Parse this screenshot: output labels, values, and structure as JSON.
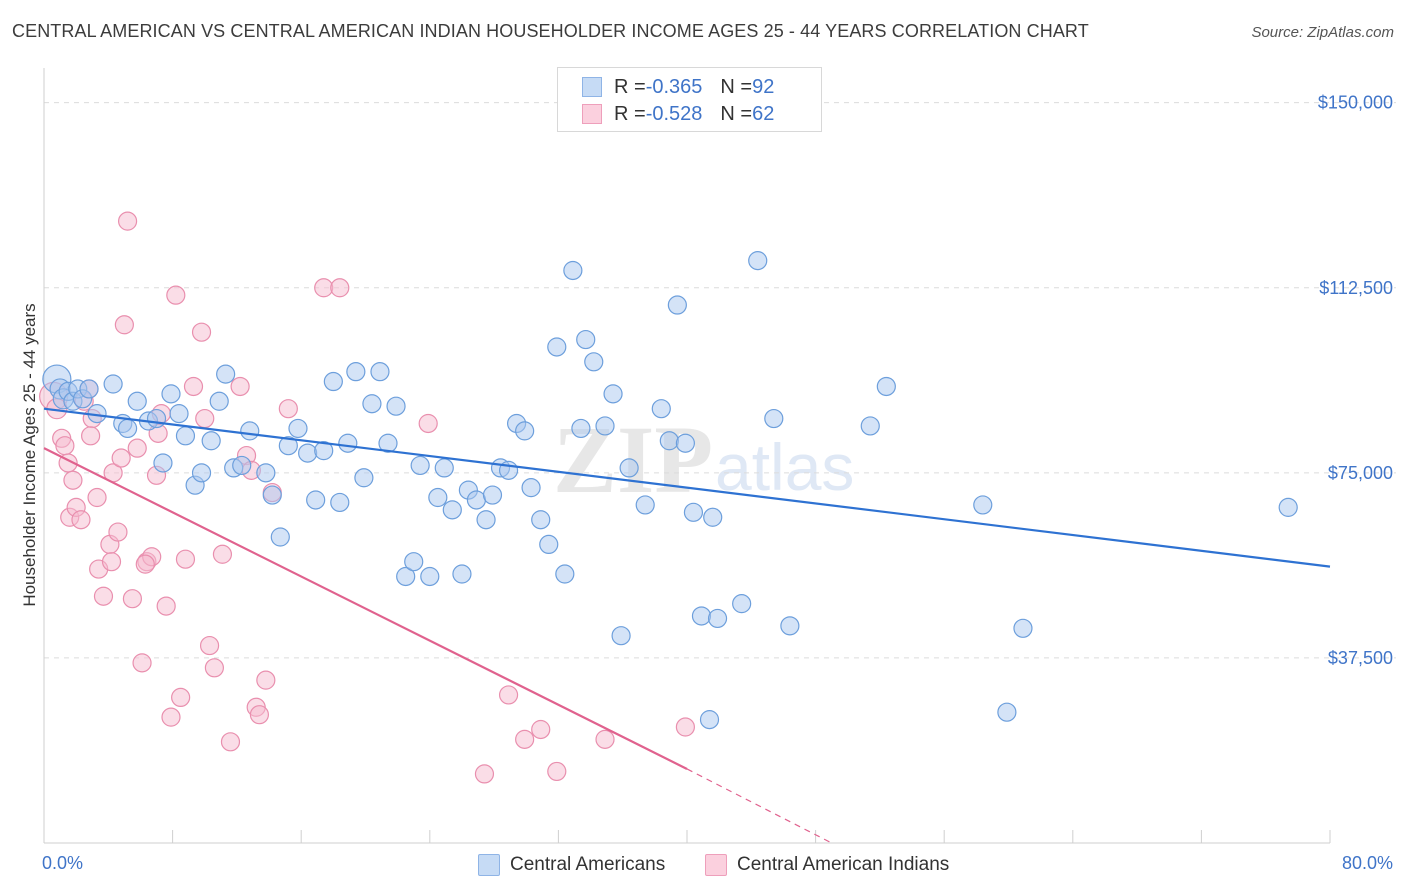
{
  "header": {
    "title": "CENTRAL AMERICAN VS CENTRAL AMERICAN INDIAN HOUSEHOLDER INCOME AGES 25 - 44 YEARS CORRELATION CHART",
    "source": "Source: ZipAtlas.com"
  },
  "legend": {
    "rows": [
      {
        "r_label": "R = ",
        "r_value": "-0.365",
        "n_label": "N = ",
        "n_value": "92"
      },
      {
        "r_label": "R = ",
        "r_value": "-0.528",
        "n_label": "N = ",
        "n_value": "62"
      }
    ]
  },
  "bottom_legend": [
    "Central Americans",
    "Central American Indians"
  ],
  "watermark": {
    "zip": "ZIP",
    "atlas": "atlas"
  },
  "colors": {
    "blue_fill": "#a9c8ef",
    "blue_stroke": "#6d9fdc",
    "blue_line": "#2e72d2",
    "pink_fill": "#f6bcd0",
    "pink_stroke": "#e98fae",
    "pink_line": "#e0628e",
    "grid": "#dcdcdc",
    "tick_text": "#3f74c8"
  },
  "chart_data": {
    "type": "scatter",
    "title": "CENTRAL AMERICAN VS CENTRAL AMERICAN INDIAN HOUSEHOLDER INCOME AGES 25 - 44 YEARS CORRELATION CHART",
    "xlabel": "",
    "ylabel": "Householder Income Ages 25 - 44 years",
    "xlim": [
      0,
      80
    ],
    "ylim": [
      0,
      155000
    ],
    "x_tick_labels": [
      "0.0%",
      "80.0%"
    ],
    "y_ticks": [
      37500,
      75000,
      112500,
      150000
    ],
    "y_tick_labels": [
      "$37,500",
      "$75,000",
      "$112,500",
      "$150,000"
    ],
    "grid": "horizontal dashed",
    "legend_position": "top-center",
    "series": [
      {
        "name": "Central Americans",
        "color": "#a9c8ef",
        "r": -0.365,
        "n": 92,
        "trend": {
          "x": [
            0,
            80
          ],
          "y": [
            88000,
            56000
          ]
        },
        "points": [
          [
            0.8,
            94000,
            14
          ],
          [
            1.0,
            92000,
            10
          ],
          [
            1.2,
            90000,
            10
          ],
          [
            1.5,
            91500,
            9
          ],
          [
            1.8,
            89500,
            9
          ],
          [
            2.1,
            92000,
            9
          ],
          [
            2.4,
            90000,
            9
          ],
          [
            2.8,
            92000,
            9
          ],
          [
            3.3,
            87000,
            9
          ],
          [
            4.3,
            93000,
            9
          ],
          [
            4.9,
            85000,
            9
          ],
          [
            5.2,
            84000,
            9
          ],
          [
            5.8,
            89500,
            9
          ],
          [
            6.5,
            85500,
            9
          ],
          [
            7.0,
            86000,
            9
          ],
          [
            7.4,
            77000,
            9
          ],
          [
            7.9,
            91000,
            9
          ],
          [
            8.4,
            87000,
            9
          ],
          [
            8.8,
            82500,
            9
          ],
          [
            9.4,
            72500,
            9
          ],
          [
            9.8,
            75000,
            9
          ],
          [
            10.4,
            81500,
            9
          ],
          [
            10.9,
            89500,
            9
          ],
          [
            11.3,
            95000,
            9
          ],
          [
            11.8,
            76000,
            9
          ],
          [
            12.3,
            76500,
            9
          ],
          [
            12.8,
            83500,
            9
          ],
          [
            13.8,
            75000,
            9
          ],
          [
            14.2,
            70500,
            9
          ],
          [
            14.7,
            62000,
            9
          ],
          [
            15.2,
            80500,
            9
          ],
          [
            15.8,
            84000,
            9
          ],
          [
            16.4,
            79000,
            9
          ],
          [
            16.9,
            69500,
            9
          ],
          [
            17.4,
            79500,
            9
          ],
          [
            18.0,
            93500,
            9
          ],
          [
            18.4,
            69000,
            9
          ],
          [
            18.9,
            81000,
            9
          ],
          [
            19.4,
            95500,
            9
          ],
          [
            19.9,
            74000,
            9
          ],
          [
            20.4,
            89000,
            9
          ],
          [
            20.9,
            95500,
            9
          ],
          [
            21.4,
            81000,
            9
          ],
          [
            21.9,
            88500,
            9
          ],
          [
            22.5,
            54000,
            9
          ],
          [
            23.0,
            57000,
            9
          ],
          [
            23.4,
            76500,
            9
          ],
          [
            24.0,
            54000,
            9
          ],
          [
            24.5,
            70000,
            9
          ],
          [
            24.9,
            76000,
            9
          ],
          [
            25.4,
            67500,
            9
          ],
          [
            26.0,
            54500,
            9
          ],
          [
            26.4,
            71500,
            9
          ],
          [
            26.9,
            69500,
            9
          ],
          [
            27.5,
            65500,
            9
          ],
          [
            27.9,
            70500,
            9
          ],
          [
            28.4,
            76000,
            9
          ],
          [
            28.9,
            75500,
            9
          ],
          [
            29.4,
            85000,
            9
          ],
          [
            29.9,
            83500,
            9
          ],
          [
            30.3,
            72000,
            9
          ],
          [
            30.9,
            65500,
            9
          ],
          [
            31.4,
            60500,
            9
          ],
          [
            31.9,
            100500,
            9
          ],
          [
            32.4,
            54500,
            9
          ],
          [
            32.9,
            116000,
            9
          ],
          [
            33.4,
            84000,
            9
          ],
          [
            33.7,
            102000,
            9
          ],
          [
            34.2,
            97500,
            9
          ],
          [
            34.9,
            84500,
            9
          ],
          [
            35.4,
            91000,
            9
          ],
          [
            35.9,
            42000,
            9
          ],
          [
            36.4,
            76000,
            9
          ],
          [
            37.4,
            68500,
            9
          ],
          [
            38.4,
            88000,
            9
          ],
          [
            38.9,
            81500,
            9
          ],
          [
            39.4,
            109000,
            9
          ],
          [
            39.9,
            81000,
            9
          ],
          [
            40.4,
            67000,
            9
          ],
          [
            40.9,
            46000,
            9
          ],
          [
            41.4,
            25000,
            9
          ],
          [
            41.9,
            45500,
            9
          ],
          [
            41.6,
            66000,
            9
          ],
          [
            43.4,
            48500,
            9
          ],
          [
            44.4,
            118000,
            9
          ],
          [
            45.4,
            86000,
            9
          ],
          [
            46.4,
            44000,
            9
          ],
          [
            52.4,
            92500,
            9
          ],
          [
            51.4,
            84500,
            9
          ],
          [
            58.4,
            68500,
            9
          ],
          [
            60.9,
            43500,
            9
          ],
          [
            59.9,
            26500,
            9
          ],
          [
            77.4,
            68000,
            9
          ]
        ]
      },
      {
        "name": "Central American Indians",
        "color": "#f6bcd0",
        "r": -0.528,
        "n": 62,
        "trend": {
          "x": [
            0,
            40
          ],
          "y": [
            80000,
            15000
          ]
        },
        "trend_dashed": {
          "x": [
            40,
            49
          ],
          "y": [
            15000,
            0
          ]
        },
        "points": [
          [
            0.6,
            90500,
            14
          ],
          [
            0.8,
            88000,
            10
          ],
          [
            1.1,
            82000,
            9
          ],
          [
            1.3,
            80500,
            9
          ],
          [
            1.5,
            77000,
            9
          ],
          [
            1.6,
            66000,
            9
          ],
          [
            1.8,
            73500,
            9
          ],
          [
            2.0,
            68000,
            9
          ],
          [
            2.3,
            65500,
            9
          ],
          [
            2.5,
            89500,
            9
          ],
          [
            2.8,
            92000,
            9
          ],
          [
            3.0,
            86000,
            9
          ],
          [
            3.3,
            70000,
            9
          ],
          [
            3.4,
            55500,
            9
          ],
          [
            3.7,
            50000,
            9
          ],
          [
            4.1,
            60500,
            9
          ],
          [
            4.3,
            75000,
            9
          ],
          [
            4.6,
            63000,
            9
          ],
          [
            4.8,
            78000,
            9
          ],
          [
            5.0,
            105000,
            9
          ],
          [
            5.2,
            126000,
            9
          ],
          [
            5.5,
            49500,
            9
          ],
          [
            5.8,
            80000,
            9
          ],
          [
            6.1,
            36500,
            9
          ],
          [
            6.4,
            57000,
            9
          ],
          [
            6.7,
            58000,
            9
          ],
          [
            7.0,
            74500,
            9
          ],
          [
            7.3,
            87000,
            9
          ],
          [
            7.6,
            48000,
            9
          ],
          [
            7.9,
            25500,
            9
          ],
          [
            8.2,
            111000,
            9
          ],
          [
            8.5,
            29500,
            9
          ],
          [
            8.8,
            57500,
            9
          ],
          [
            9.3,
            92500,
            9
          ],
          [
            9.8,
            103500,
            9
          ],
          [
            10.3,
            40000,
            9
          ],
          [
            10.6,
            35500,
            9
          ],
          [
            11.1,
            58500,
            9
          ],
          [
            11.6,
            20500,
            9
          ],
          [
            12.2,
            92500,
            9
          ],
          [
            12.6,
            78500,
            9
          ],
          [
            13.2,
            27500,
            9
          ],
          [
            13.4,
            26000,
            9
          ],
          [
            13.8,
            33000,
            9
          ],
          [
            14.2,
            71000,
            9
          ],
          [
            15.2,
            88000,
            9
          ],
          [
            17.4,
            112500,
            9
          ],
          [
            18.4,
            112500,
            9
          ],
          [
            23.9,
            85000,
            9
          ],
          [
            27.4,
            14000,
            9
          ],
          [
            28.9,
            30000,
            9
          ],
          [
            29.9,
            21000,
            9
          ],
          [
            30.9,
            23000,
            9
          ],
          [
            31.9,
            14500,
            9
          ],
          [
            34.9,
            21000,
            9
          ],
          [
            39.9,
            23500,
            9
          ],
          [
            4.2,
            57000,
            9
          ],
          [
            6.3,
            56500,
            9
          ],
          [
            2.9,
            82500,
            9
          ],
          [
            7.1,
            83000,
            9
          ],
          [
            10.0,
            86000,
            9
          ],
          [
            12.9,
            75500,
            9
          ]
        ]
      }
    ]
  }
}
